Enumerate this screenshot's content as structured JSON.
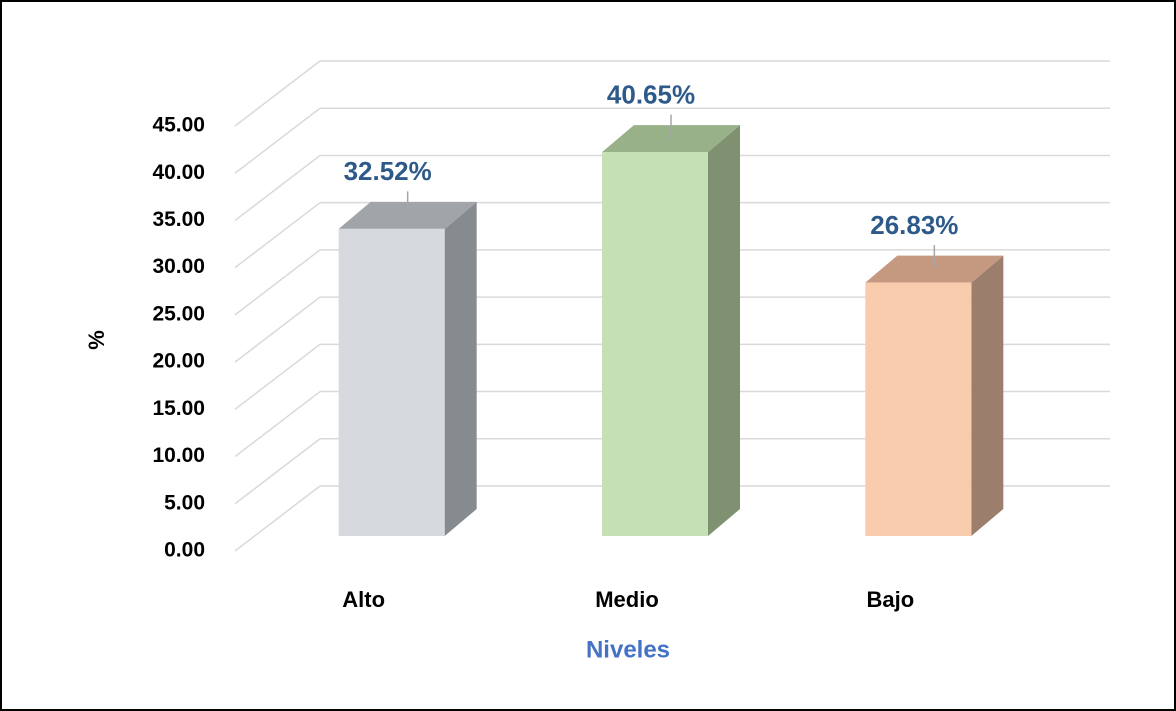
{
  "chart_data": {
    "type": "bar3d",
    "x_label": "Niveles",
    "y_label": "%",
    "categories": [
      "Alto",
      "Medio",
      "Bajo"
    ],
    "values": [
      32.52,
      40.65,
      26.83
    ],
    "value_labels": [
      "32.52%",
      "40.65%",
      "26.83%"
    ],
    "colors": [
      "#d6dadf",
      "#c5e0b4",
      "#f8cbad"
    ],
    "side_colors": [
      "#868b90",
      "#7f9171",
      "#9b7e6c"
    ],
    "top_colors": [
      "#a1a5aa",
      "#98b188",
      "#c4997f"
    ],
    "ylim": [
      0,
      45
    ],
    "yticks": [
      {
        "value": 0,
        "label": "0.00"
      },
      {
        "value": 5,
        "label": "5.00"
      },
      {
        "value": 10,
        "label": "10.00"
      },
      {
        "value": 15,
        "label": "15.00"
      },
      {
        "value": 20,
        "label": "20.00"
      },
      {
        "value": 25,
        "label": "25.00"
      },
      {
        "value": 30,
        "label": "30.00"
      },
      {
        "value": 35,
        "label": "35.00"
      },
      {
        "value": 40,
        "label": "40.00"
      },
      {
        "value": 45,
        "label": "45.00"
      }
    ],
    "grid": true
  }
}
